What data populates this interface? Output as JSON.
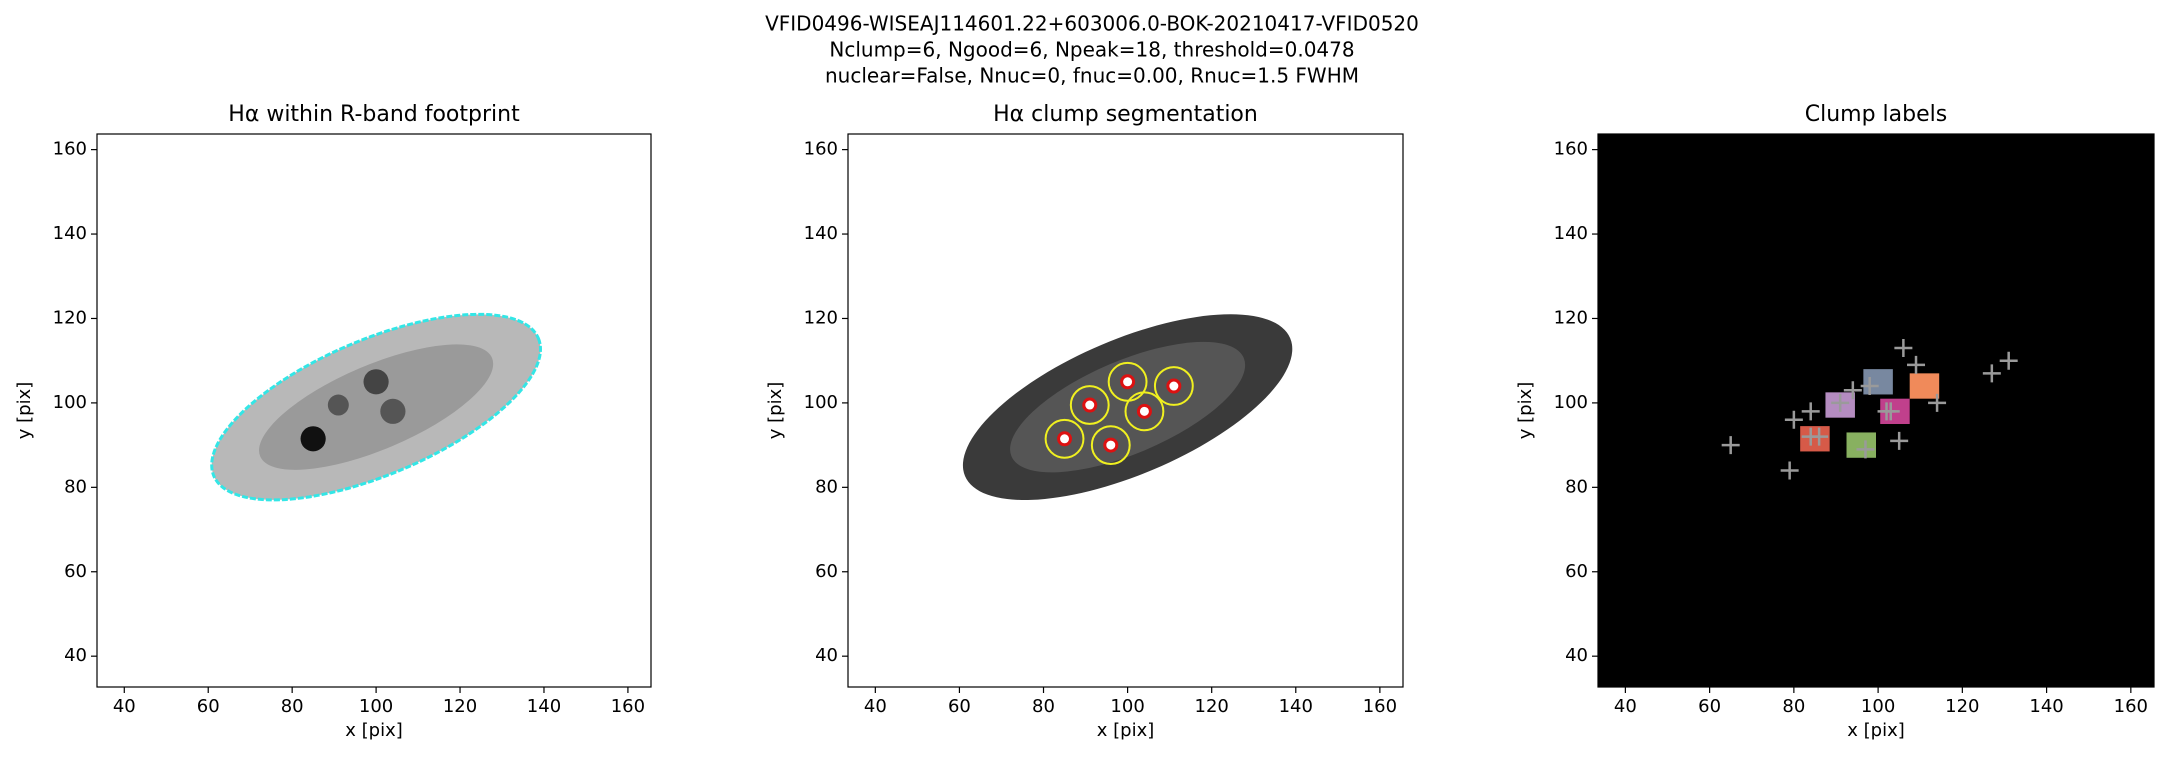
{
  "title": [
    "VFID0496-WISEAJ114601.22+603006.0-BOK-20210417-VFID0520",
    "Nclump=6, Ngood=6, Npeak=18, threshold=0.0478",
    "nuclear=False, Nnuc=0, fnuc=0.00, Rnuc=1.5 FWHM"
  ],
  "chart_data": [
    {
      "type": "image",
      "title": "Hα within R-band footprint",
      "xlabel": "x [pix]",
      "ylabel": "y [pix]",
      "xlim": [
        33.5,
        165.5
      ],
      "ylim": [
        32.7,
        163.7
      ],
      "xticks": [
        40,
        60,
        80,
        100,
        120,
        140,
        160
      ],
      "yticks": [
        40,
        60,
        80,
        100,
        120,
        140,
        160
      ],
      "background": "#ffffff",
      "contour_color": "#33e6e6"
    },
    {
      "type": "image",
      "title": "Hα clump segmentation",
      "xlabel": "x [pix]",
      "ylabel": "y [pix]",
      "xlim": [
        33.5,
        165.5
      ],
      "ylim": [
        32.7,
        163.7
      ],
      "xticks": [
        40,
        60,
        80,
        100,
        120,
        140,
        160
      ],
      "yticks": [
        40,
        60,
        80,
        100,
        120,
        140,
        160
      ],
      "background": "#ffffff",
      "contour_color": "#f0f020",
      "marker_color": "#dd1111",
      "clumps": {
        "x": [
          85,
          91,
          100,
          104,
          111,
          96
        ],
        "y": [
          91.5,
          99.5,
          105,
          98,
          104,
          90
        ]
      }
    },
    {
      "type": "image",
      "title": "Clump labels",
      "xlabel": "x [pix]",
      "ylabel": "y [pix]",
      "xlim": [
        33.5,
        165.5
      ],
      "ylim": [
        32.7,
        163.7
      ],
      "xticks": [
        40,
        60,
        80,
        100,
        120,
        140,
        160
      ],
      "yticks": [
        40,
        60,
        80,
        100,
        120,
        140,
        160
      ],
      "background": "#000000",
      "marker_color": "#9a9a9a",
      "clumps": {
        "x": [
          85,
          91,
          100,
          104,
          111,
          96
        ],
        "y": [
          91.5,
          99.5,
          105,
          98,
          104,
          90
        ],
        "colors": [
          "#d65a48",
          "#b48cc0",
          "#7888a0",
          "#c0408c",
          "#f08a5a",
          "#88b060"
        ]
      },
      "peaks": {
        "x": [
          65,
          79,
          80,
          84,
          86,
          91,
          94,
          97,
          98,
          102,
          105,
          106,
          109,
          114,
          127,
          131,
          103,
          84
        ],
        "y": [
          90,
          84,
          96,
          98,
          92,
          100,
          103,
          89,
          104,
          98,
          91,
          113,
          109,
          100,
          107,
          110,
          98,
          92
        ]
      }
    }
  ]
}
